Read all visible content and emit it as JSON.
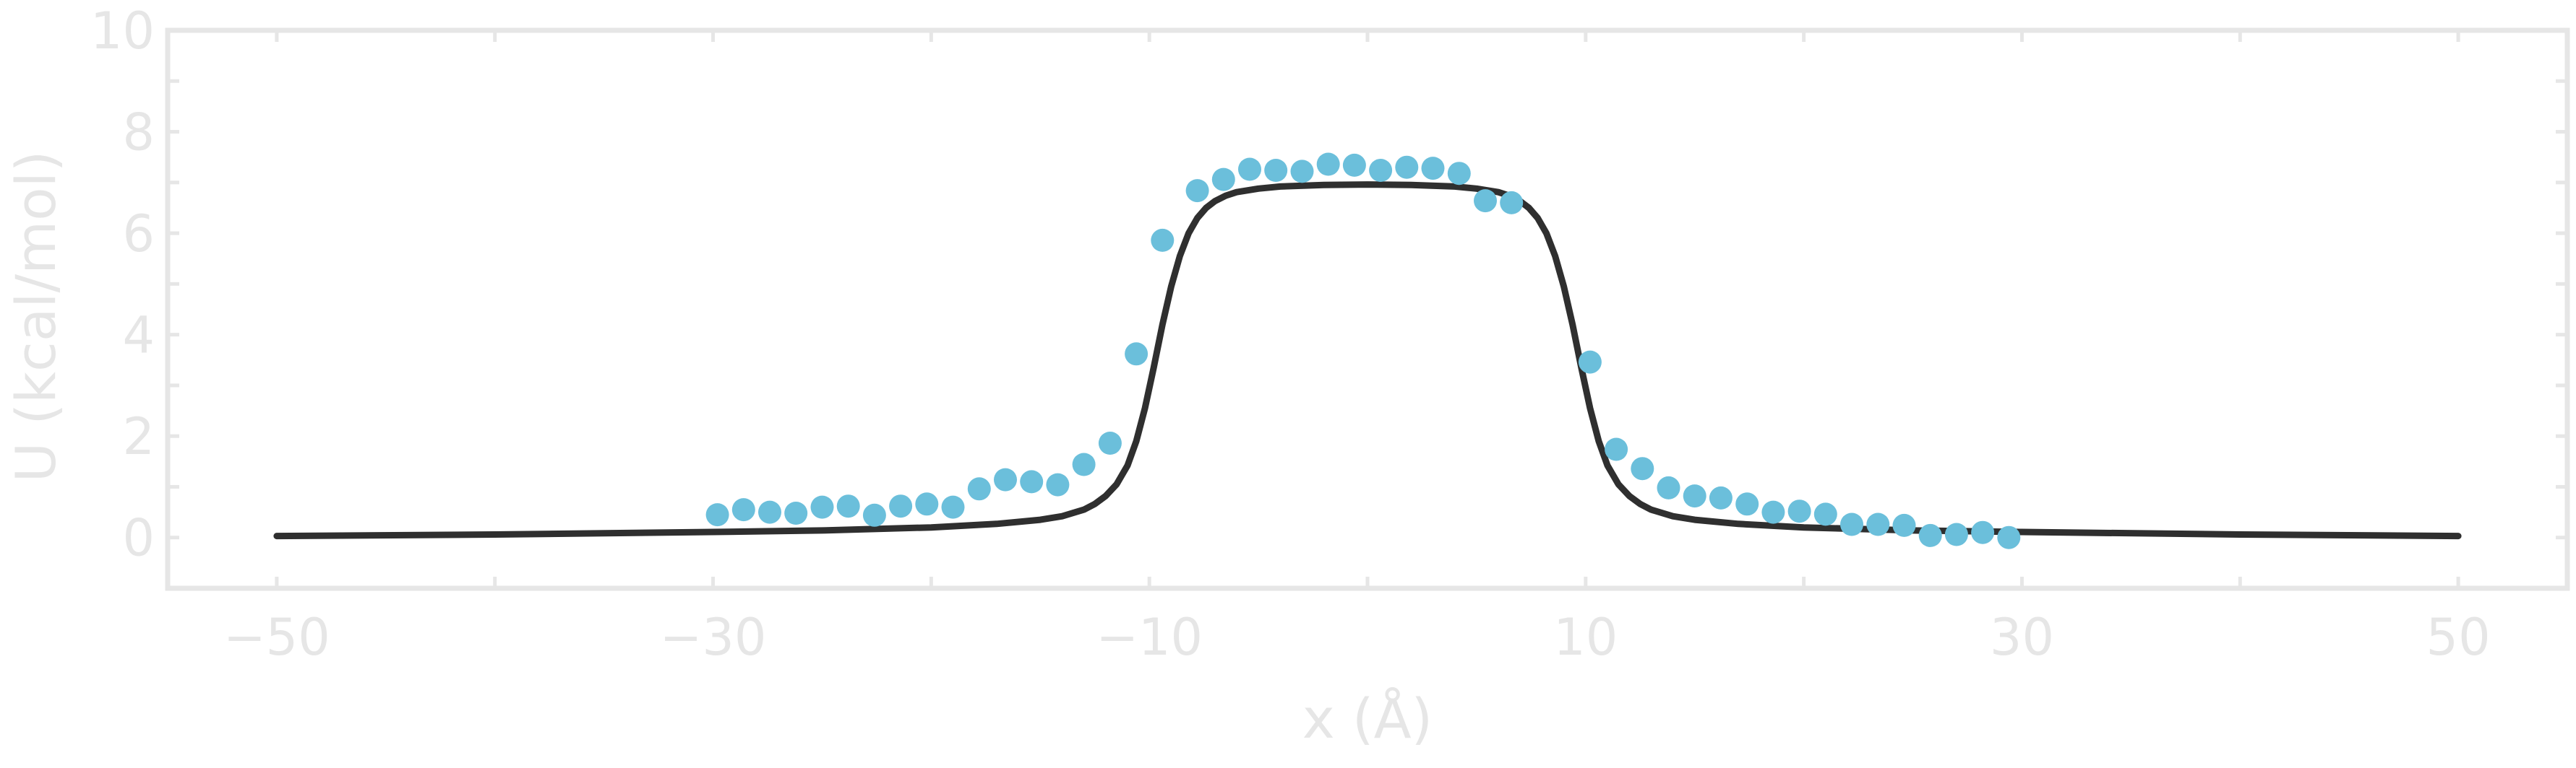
{
  "chart_data": {
    "type": "scatter",
    "title": "",
    "xlabel": "x (Å)",
    "ylabel": "U (kcal/mol)",
    "xlim": [
      -55,
      55
    ],
    "ylim": [
      -1,
      10
    ],
    "x_ticks": [
      -50,
      -30,
      -10,
      10,
      30,
      50
    ],
    "x_tick_labels": [
      "−50",
      "−30",
      "−10",
      "10",
      "30",
      "50"
    ],
    "x_minor_ticks": [
      -50,
      -40,
      -30,
      -20,
      -10,
      0,
      10,
      20,
      30,
      40,
      50
    ],
    "y_ticks": [
      0,
      2,
      4,
      6,
      8,
      10
    ],
    "y_tick_labels": [
      "0",
      "2",
      "4",
      "6",
      "8",
      "10"
    ],
    "y_minor_ticks": [
      0,
      1,
      2,
      3,
      4,
      5,
      6,
      7,
      8,
      9,
      10
    ],
    "grid": false,
    "legend": "none",
    "series": [
      {
        "kind": "points",
        "color": "#6bbfdb",
        "x": [
          -29.8,
          -28.6,
          -27.4,
          -26.2,
          -25.0,
          -23.8,
          -22.6,
          -21.4,
          -20.2,
          -19.0,
          -17.8,
          -16.6,
          -15.4,
          -14.2,
          -13.0,
          -11.8,
          -10.6,
          -9.4,
          -7.8,
          -6.6,
          -5.4,
          -4.2,
          -3.0,
          -1.8,
          -0.6,
          0.6,
          1.8,
          3.0,
          4.2,
          5.4,
          6.6,
          10.2,
          11.4,
          12.6,
          13.8,
          15.0,
          16.2,
          17.4,
          18.6,
          19.8,
          21.0,
          22.2,
          23.4,
          24.6,
          25.8,
          27.0,
          28.2,
          29.4
        ],
        "y": [
          0.45,
          0.55,
          0.5,
          0.48,
          0.6,
          0.62,
          0.44,
          0.62,
          0.66,
          0.6,
          0.96,
          1.14,
          1.1,
          1.04,
          1.44,
          1.86,
          3.62,
          5.86,
          6.84,
          7.06,
          7.26,
          7.24,
          7.22,
          7.36,
          7.34,
          7.24,
          7.3,
          7.28,
          7.18,
          6.64,
          6.6,
          3.46,
          1.74,
          1.36,
          0.98,
          0.82,
          0.78,
          0.66,
          0.5,
          0.52,
          0.46,
          0.26,
          0.26,
          0.24,
          0.04,
          0.06,
          0.1,
          0.0
        ]
      },
      {
        "kind": "line",
        "color": "#2f2f2f",
        "x": [
          -50,
          -40,
          -30,
          -25,
          -20,
          -17,
          -15,
          -14,
          -13,
          -12.5,
          -12,
          -11.5,
          -11,
          -10.6,
          -10.2,
          -9.8,
          -9.4,
          -9,
          -8.6,
          -8.2,
          -7.8,
          -7.4,
          -7,
          -6.5,
          -6,
          -5,
          -4,
          -2,
          0,
          2,
          4,
          5,
          6,
          6.5,
          7,
          7.4,
          7.8,
          8.2,
          8.6,
          9,
          9.4,
          9.8,
          10.2,
          10.6,
          11,
          11.5,
          12,
          12.5,
          13,
          14,
          15,
          17,
          20,
          25,
          30,
          40,
          50
        ],
        "y": [
          0.03,
          0.06,
          0.11,
          0.14,
          0.2,
          0.27,
          0.35,
          0.42,
          0.55,
          0.66,
          0.82,
          1.05,
          1.42,
          1.9,
          2.55,
          3.35,
          4.2,
          4.95,
          5.55,
          6.0,
          6.3,
          6.5,
          6.63,
          6.74,
          6.81,
          6.88,
          6.92,
          6.95,
          6.96,
          6.95,
          6.92,
          6.88,
          6.81,
          6.74,
          6.63,
          6.5,
          6.3,
          6.0,
          5.55,
          4.95,
          4.2,
          3.35,
          2.55,
          1.9,
          1.42,
          1.05,
          0.82,
          0.66,
          0.55,
          0.42,
          0.35,
          0.27,
          0.2,
          0.14,
          0.11,
          0.06,
          0.03
        ]
      }
    ]
  }
}
